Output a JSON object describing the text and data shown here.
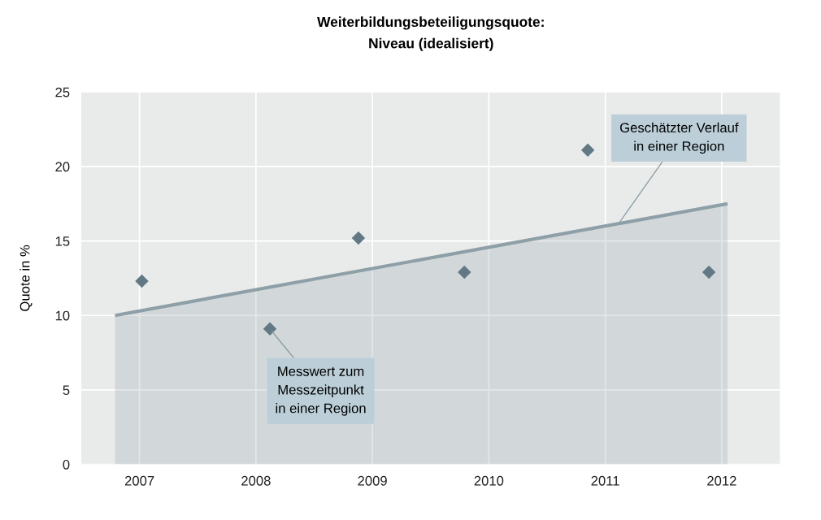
{
  "chart_data": {
    "type": "area",
    "title": "Weiterbildungsbeteiligungsquote:\nNiveau (idealisiert)",
    "ylabel": "Quote in %",
    "series": [
      {
        "color": "#8e9fa8",
        "x": [
          2006.79,
          2012.05
        ],
        "values": [
          10,
          17.5
        ]
      },
      {
        "type": "scatter",
        "color": "#627985",
        "marker": "diamond",
        "x": [
          2007.02,
          2008.12,
          2008.88,
          2009.79,
          2010.85,
          2011.89
        ],
        "values": [
          12.3,
          9.1,
          15.2,
          12.9,
          21.1,
          12.9
        ]
      }
    ],
    "annotations": [
      {
        "text": "Messwert zum\nMesszeitpunkt\nin einer Region",
        "x": 2008.12,
        "y": 9.1
      },
      {
        "text": "Geschätzter Verlauf\nin einer Region",
        "x": 2011.1,
        "y": 16.0
      }
    ],
    "xlim": [
      2006.5,
      2012.5
    ],
    "xticks": [
      2007,
      2008,
      2009,
      2010,
      2011,
      2012
    ],
    "ylim": [
      0,
      25
    ],
    "yticks": [
      0,
      5,
      10,
      15,
      20,
      25
    ],
    "grid": true
  }
}
